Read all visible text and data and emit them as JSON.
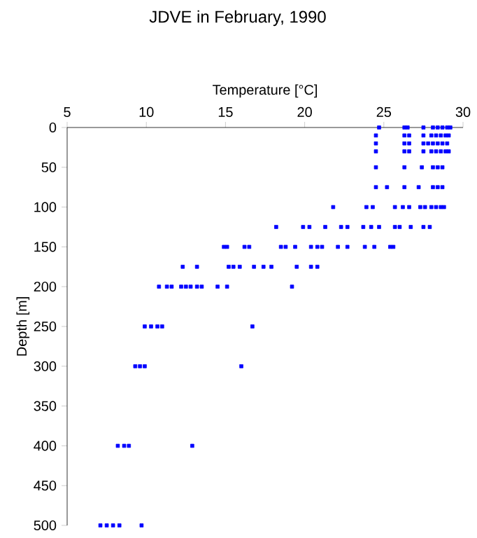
{
  "chart_data": {
    "type": "scatter",
    "title": "JDVE in February, 1990",
    "xlabel": "Temperature [°C]",
    "ylabel": "Depth [m]",
    "xlim": [
      5,
      30
    ],
    "xticks": [
      5,
      10,
      15,
      20,
      25,
      30
    ],
    "ylim": [
      500,
      0
    ],
    "yticks": [
      0,
      50,
      100,
      150,
      200,
      250,
      300,
      350,
      400,
      450,
      500
    ],
    "marker": "square",
    "series": [
      {
        "color": "#0000ff",
        "x": [
          24.7,
          26.3,
          26.5,
          27.5,
          28.1,
          28.4,
          28.7,
          29.0,
          29.2,
          24.5,
          26.3,
          26.6,
          27.5,
          28.0,
          28.3,
          28.6,
          28.9,
          29.1,
          24.5,
          26.3,
          26.6,
          27.5,
          27.8,
          28.1,
          28.4,
          28.7,
          29.0,
          24.5,
          26.3,
          26.6,
          27.5,
          28.0,
          28.3,
          28.6,
          28.9,
          29.1,
          24.5,
          26.3,
          27.4,
          28.1,
          28.4,
          28.7,
          24.5,
          25.2,
          26.3,
          27.2,
          28.1,
          28.4,
          28.7,
          21.8,
          23.9,
          24.3,
          25.7,
          26.2,
          26.6,
          27.3,
          27.6,
          28.0,
          28.3,
          28.6,
          28.8,
          18.2,
          19.9,
          20.3,
          21.3,
          22.3,
          22.7,
          23.7,
          24.2,
          24.7,
          25.7,
          26.0,
          26.7,
          27.5,
          27.9,
          14.9,
          15.1,
          16.2,
          16.5,
          18.5,
          18.8,
          19.4,
          20.4,
          20.8,
          21.1,
          22.1,
          22.7,
          23.8,
          24.4,
          25.4,
          25.6,
          12.3,
          13.2,
          15.2,
          15.5,
          15.9,
          16.8,
          17.4,
          17.9,
          19.5,
          20.4,
          20.8,
          10.8,
          11.3,
          11.6,
          12.2,
          12.5,
          12.8,
          13.2,
          13.5,
          14.5,
          15.1,
          19.2,
          9.9,
          10.3,
          10.7,
          11.0,
          16.7,
          9.3,
          9.6,
          9.9,
          16.0,
          8.2,
          8.6,
          8.9,
          12.9,
          7.1,
          7.5,
          7.9,
          8.3,
          9.7
        ],
        "values": [
          0,
          0,
          0,
          0,
          0,
          0,
          0,
          0,
          0,
          10,
          10,
          10,
          10,
          10,
          10,
          10,
          10,
          10,
          20,
          20,
          20,
          20,
          20,
          20,
          20,
          20,
          20,
          30,
          30,
          30,
          30,
          30,
          30,
          30,
          30,
          30,
          50,
          50,
          50,
          50,
          50,
          50,
          75,
          75,
          75,
          75,
          75,
          75,
          75,
          100,
          100,
          100,
          100,
          100,
          100,
          100,
          100,
          100,
          100,
          100,
          100,
          125,
          125,
          125,
          125,
          125,
          125,
          125,
          125,
          125,
          125,
          125,
          125,
          125,
          125,
          150,
          150,
          150,
          150,
          150,
          150,
          150,
          150,
          150,
          150,
          150,
          150,
          150,
          150,
          150,
          150,
          175,
          175,
          175,
          175,
          175,
          175,
          175,
          175,
          175,
          175,
          175,
          200,
          200,
          200,
          200,
          200,
          200,
          200,
          200,
          200,
          200,
          200,
          250,
          250,
          250,
          250,
          250,
          300,
          300,
          300,
          300,
          400,
          400,
          400,
          400,
          500,
          500,
          500,
          500,
          500
        ]
      }
    ]
  }
}
